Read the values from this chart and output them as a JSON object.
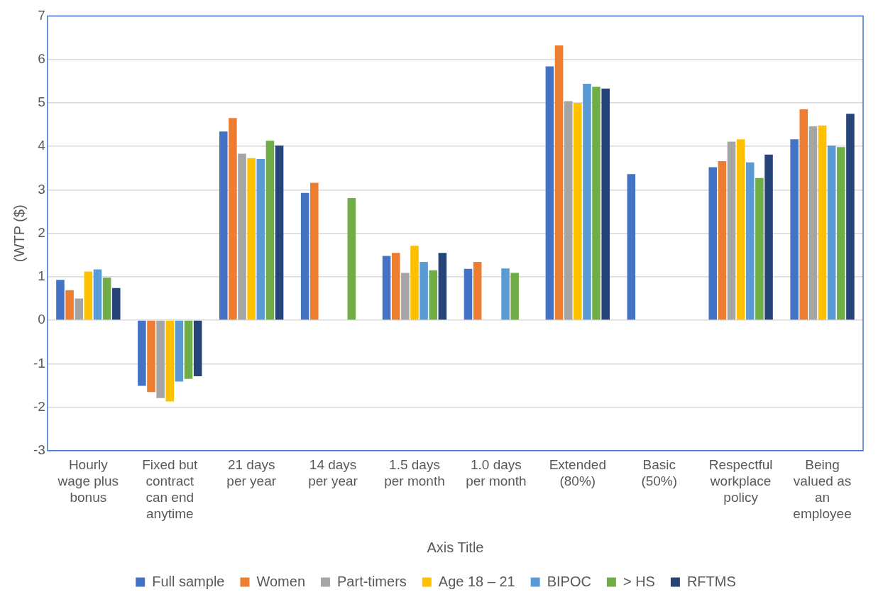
{
  "chart_data": {
    "type": "bar",
    "ylabel": "(WTP ($)",
    "xlabel": "Axis Title",
    "categories": [
      "Hourly wage plus bonus",
      "Fixed but contract can end anytime",
      "21 days per year",
      "14 days per year",
      "1.5 days per month",
      "1.0 days per month",
      "Extended (80%)",
      "Basic (50%)",
      "Respectful workplace policy",
      "Being valued as an employee"
    ],
    "series": [
      {
        "name": "Full sample",
        "color": "#4472c4",
        "values": [
          0.93,
          -1.51,
          4.34,
          2.93,
          1.48,
          1.18,
          5.84,
          3.36,
          3.52,
          4.16
        ]
      },
      {
        "name": "Women",
        "color": "#ed7d31",
        "values": [
          0.69,
          -1.65,
          4.65,
          3.16,
          1.55,
          1.34,
          6.32,
          null,
          3.66,
          4.85
        ]
      },
      {
        "name": "Part-timers",
        "color": "#a5a5a5",
        "values": [
          0.5,
          -1.79,
          3.83,
          null,
          1.09,
          null,
          5.04,
          null,
          4.11,
          4.46
        ]
      },
      {
        "name": "Age 18 – 21",
        "color": "#ffc000",
        "values": [
          1.12,
          -1.87,
          3.73,
          null,
          1.71,
          null,
          5.0,
          null,
          4.16,
          4.48
        ]
      },
      {
        "name": "BIPOC",
        "color": "#5b9bd5",
        "values": [
          1.17,
          -1.41,
          3.71,
          null,
          1.34,
          1.19,
          5.44,
          null,
          3.63,
          4.02
        ]
      },
      {
        "name": "> HS",
        "color": "#70ad47",
        "values": [
          0.98,
          -1.35,
          4.13,
          2.81,
          1.15,
          1.09,
          5.37,
          null,
          3.27,
          3.98
        ]
      },
      {
        "name": "RFTMS",
        "color": "#264478",
        "values": [
          0.74,
          -1.29,
          4.02,
          null,
          1.55,
          null,
          5.33,
          null,
          3.81,
          4.75
        ]
      }
    ],
    "ylim": [
      -3,
      7
    ],
    "yticks": [
      -3,
      -2,
      -1,
      0,
      1,
      2,
      3,
      4,
      5,
      6,
      7
    ],
    "grid": "y",
    "legend": "bottom"
  }
}
